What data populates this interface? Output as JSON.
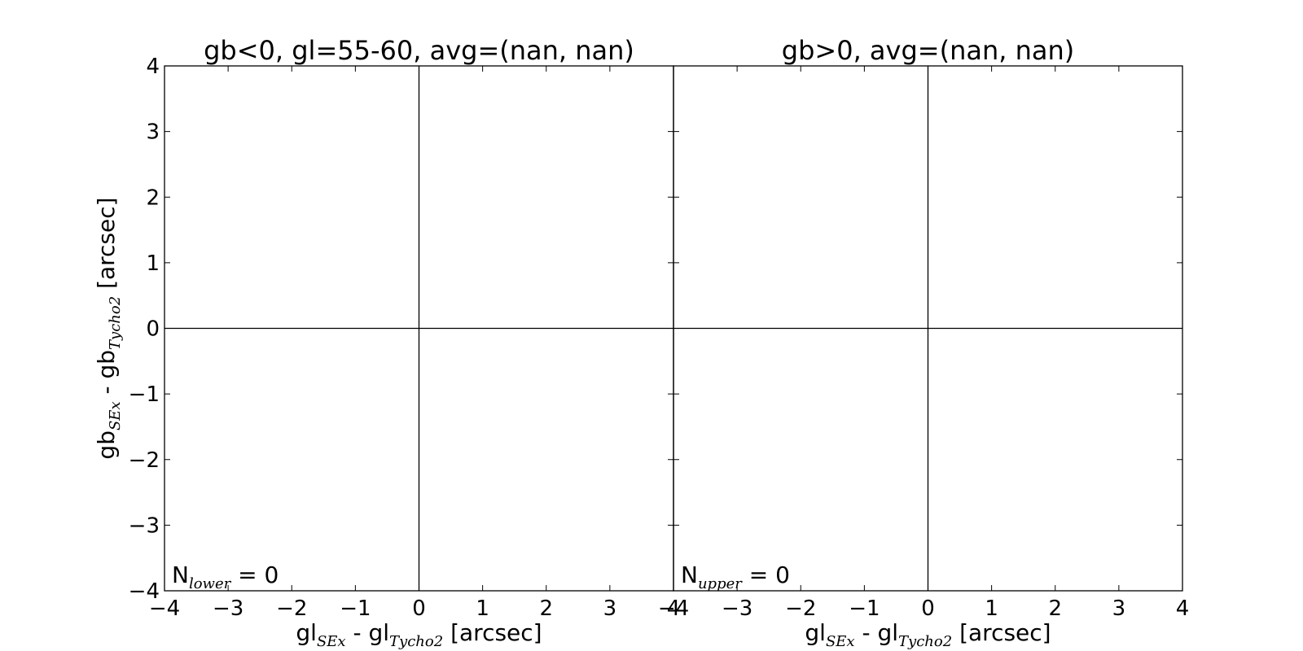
{
  "chart_data": [
    {
      "type": "scatter",
      "title": "gb<0, gl=55-60, avg=(nan, nan)",
      "xlabel": {
        "main": "gl",
        "sub1": "SEx",
        "mid": " - gl",
        "sub2": "Tycho2",
        "tail": " [arcsec]"
      },
      "ylabel": {
        "main": "gb",
        "sub1": "SEx",
        "mid": " - gb",
        "sub2": "Tycho2",
        "tail": " [arcsec]"
      },
      "xlim": [
        -4,
        4
      ],
      "ylim": [
        -4,
        4
      ],
      "x_ticks": [
        "−4",
        "−3",
        "−2",
        "−1",
        "0",
        "1",
        "2",
        "3",
        "4"
      ],
      "y_ticks": [
        "−4",
        "−3",
        "−2",
        "−1",
        "0",
        "1",
        "2",
        "3",
        "4"
      ],
      "show_y_tick_labels": true,
      "show_ylabel": true,
      "reference_lines": {
        "x": 0,
        "y": 0
      },
      "series": [],
      "annotation": {
        "main": "N",
        "sub": "lower",
        "tail": " = 0"
      }
    },
    {
      "type": "scatter",
      "title": "gb>0, avg=(nan, nan)",
      "xlabel": {
        "main": "gl",
        "sub1": "SEx",
        "mid": " - gl",
        "sub2": "Tycho2",
        "tail": " [arcsec]"
      },
      "ylabel": null,
      "xlim": [
        -4,
        4
      ],
      "ylim": [
        -4,
        4
      ],
      "x_ticks": [
        "−4",
        "−3",
        "−2",
        "−1",
        "0",
        "1",
        "2",
        "3",
        "4"
      ],
      "y_ticks": [
        "−4",
        "−3",
        "−2",
        "−1",
        "0",
        "1",
        "2",
        "3",
        "4"
      ],
      "show_y_tick_labels": false,
      "show_ylabel": false,
      "reference_lines": {
        "x": 0,
        "y": 0
      },
      "series": [],
      "annotation": {
        "main": "N",
        "sub": "upper",
        "tail": " = 0"
      }
    }
  ]
}
